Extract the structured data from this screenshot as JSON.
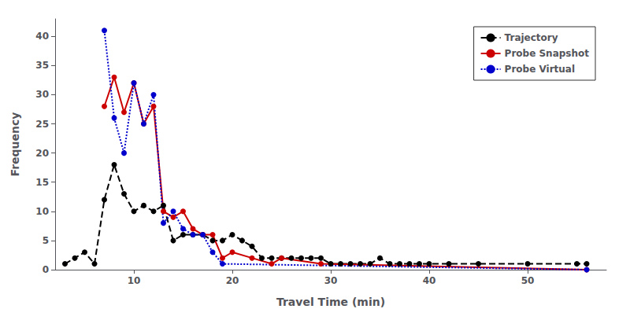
{
  "chart_data": {
    "type": "line",
    "title": "",
    "xlabel": "Travel Time (min)",
    "ylabel": "Frequency",
    "xlim": [
      2,
      58
    ],
    "ylim": [
      0,
      43
    ],
    "xticks": [
      10,
      20,
      30,
      40,
      50
    ],
    "yticks": [
      0,
      5,
      10,
      15,
      20,
      25,
      30,
      35,
      40
    ],
    "grid": false,
    "legend": "upper right",
    "series": [
      {
        "name": "Trajectory",
        "color": "#000000",
        "line_style": "dashed",
        "marker": "circle",
        "x": [
          3,
          4,
          5,
          6,
          7,
          8,
          9,
          10,
          11,
          12,
          13,
          14,
          15,
          16,
          17,
          18,
          19,
          20,
          21,
          22,
          23,
          24,
          25,
          26,
          27,
          28,
          29,
          30,
          31,
          32,
          33,
          34,
          35,
          36,
          37,
          38,
          39,
          40,
          42,
          45,
          50,
          55,
          56
        ],
        "values": [
          1,
          2,
          3,
          1,
          12,
          18,
          13,
          10,
          11,
          10,
          11,
          5,
          6,
          6,
          6,
          5,
          5,
          6,
          5,
          4,
          2,
          2,
          2,
          2,
          2,
          2,
          2,
          1,
          1,
          1,
          1,
          1,
          2,
          1,
          1,
          1,
          1,
          1,
          1,
          1,
          1,
          1,
          1
        ]
      },
      {
        "name": "Probe Snapshot",
        "color": "#cc0000",
        "line_style": "solid",
        "marker": "circle",
        "x": [
          7,
          8,
          9,
          10,
          11,
          12,
          13,
          14,
          15,
          16,
          17,
          18,
          19,
          20,
          22,
          24,
          25,
          29,
          56
        ],
        "values": [
          28,
          33,
          27,
          32,
          25,
          28,
          10,
          9,
          10,
          7,
          6,
          6,
          2,
          3,
          2,
          1,
          2,
          1,
          0
        ]
      },
      {
        "name": "Probe Virtual",
        "color": "#0000cc",
        "line_style": "dotted",
        "marker": "circle",
        "x": [
          7,
          8,
          9,
          10,
          11,
          12,
          13,
          14,
          15,
          16,
          17,
          18,
          19,
          56
        ],
        "values": [
          41,
          26,
          20,
          32,
          25,
          30,
          8,
          10,
          7,
          6,
          6,
          3,
          1,
          0
        ]
      }
    ]
  }
}
